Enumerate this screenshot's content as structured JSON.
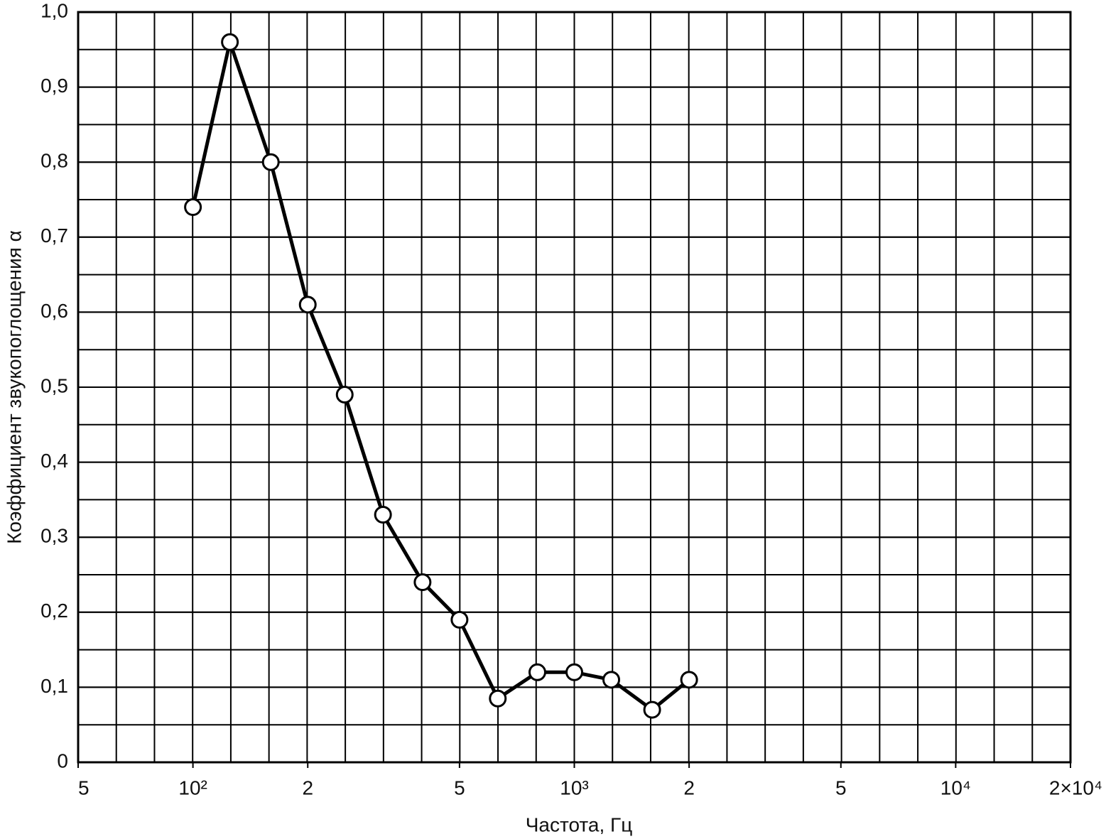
{
  "chart_data": {
    "type": "line",
    "xlabel": "Частота, Гц",
    "ylabel": "Коэффициент звукопоглощения α",
    "x": [
      100,
      125,
      160,
      200,
      250,
      315,
      400,
      500,
      630,
      800,
      1000,
      1250,
      1600,
      2000
    ],
    "series": [
      {
        "color": "#000000",
        "values": [
          0.74,
          0.96,
          0.8,
          0.61,
          0.49,
          0.33,
          0.24,
          0.19,
          0.085,
          0.12,
          0.12,
          0.11,
          0.07,
          0.11
        ]
      }
    ],
    "xscale": "log",
    "xlim": [
      50,
      20000
    ],
    "xticks": [
      {
        "value": 50,
        "label": "5"
      },
      {
        "value": 100,
        "label": "10²"
      },
      {
        "value": 200,
        "label": "2"
      },
      {
        "value": 500,
        "label": "5"
      },
      {
        "value": 1000,
        "label": "10³"
      },
      {
        "value": 2000,
        "label": "2"
      },
      {
        "value": 5000,
        "label": "5"
      },
      {
        "value": 10000,
        "label": "10⁴"
      },
      {
        "value": 20000,
        "label": "2×10⁴"
      }
    ],
    "ylim": [
      0,
      1
    ],
    "yticks": [
      0,
      {
        "value": 0.1,
        "label": "0,1"
      },
      {
        "value": 0.2,
        "label": "0,2"
      },
      {
        "value": 0.3,
        "label": "0,3"
      },
      {
        "value": 0.4,
        "label": "0,4"
      },
      {
        "value": 0.5,
        "label": "0,5"
      },
      {
        "value": 0.6,
        "label": "0,6"
      },
      {
        "value": 0.7,
        "label": "0,7"
      },
      {
        "value": 0.8,
        "label": "0,8"
      },
      {
        "value": 0.9,
        "label": "0,9"
      },
      {
        "value": 1,
        "label": "1,0"
      }
    ],
    "grid": true
  }
}
